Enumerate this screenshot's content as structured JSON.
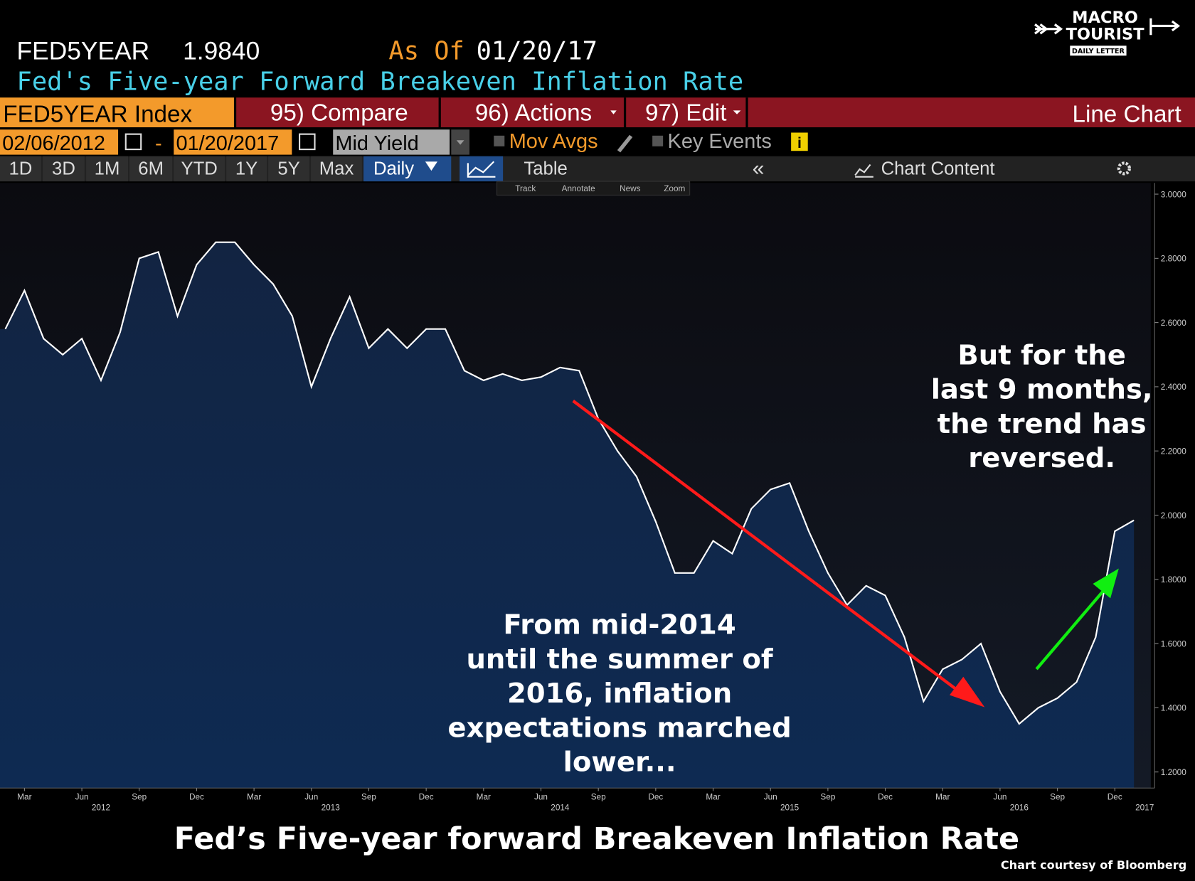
{
  "header": {
    "ticker": "FED5YEAR",
    "last": "1.9840",
    "as_of_label": "As Of",
    "as_of": "01/20/17",
    "name": "Fed's Five-year Forward Breakeven Inflation Rate"
  },
  "toolbar": {
    "security": "FED5YEAR Index",
    "compare": "95) Compare",
    "actions": "96) Actions",
    "edit": "97) Edit",
    "chart_kind": "Line Chart",
    "start_date": "02/06/2012",
    "date_sep": "-",
    "end_date": "01/20/2017",
    "field": "Mid Yield",
    "mov_avgs": "Mov Avgs",
    "key_events": "Key Events",
    "ranges": [
      "1D",
      "3D",
      "1M",
      "6M",
      "YTD",
      "1Y",
      "5Y",
      "Max"
    ],
    "period": "Daily",
    "table": "Table",
    "chart_content": "Chart Content",
    "tools": [
      "Track",
      "Annotate",
      "News",
      "Zoom"
    ]
  },
  "logo": {
    "line1": "MACRO",
    "line2": "TOURIST",
    "line3": "DAILY LETTER"
  },
  "chart_data": {
    "type": "line",
    "title": "Fed’s Five-year forward Breakeven Inflation Rate",
    "source": "Chart courtesy of Bloomberg",
    "x": [
      "2012-02",
      "2012-03",
      "2012-04",
      "2012-05",
      "2012-06",
      "2012-07",
      "2012-08",
      "2012-09",
      "2012-10",
      "2012-11",
      "2012-12",
      "2013-01",
      "2013-02",
      "2013-03",
      "2013-04",
      "2013-05",
      "2013-06",
      "2013-07",
      "2013-08",
      "2013-09",
      "2013-10",
      "2013-11",
      "2013-12",
      "2014-01",
      "2014-02",
      "2014-03",
      "2014-04",
      "2014-05",
      "2014-06",
      "2014-07",
      "2014-08",
      "2014-09",
      "2014-10",
      "2014-11",
      "2014-12",
      "2015-01",
      "2015-02",
      "2015-03",
      "2015-04",
      "2015-05",
      "2015-06",
      "2015-07",
      "2015-08",
      "2015-09",
      "2015-10",
      "2015-11",
      "2015-12",
      "2016-01",
      "2016-02",
      "2016-03",
      "2016-04",
      "2016-05",
      "2016-06",
      "2016-07",
      "2016-08",
      "2016-09",
      "2016-10",
      "2016-11",
      "2016-12",
      "2017-01"
    ],
    "series": [
      {
        "name": "FED5YEAR",
        "color": "#ffffff",
        "values": [
          2.58,
          2.7,
          2.55,
          2.5,
          2.55,
          2.42,
          2.57,
          2.8,
          2.82,
          2.62,
          2.78,
          2.85,
          2.85,
          2.78,
          2.72,
          2.62,
          2.4,
          2.55,
          2.68,
          2.52,
          2.58,
          2.52,
          2.58,
          2.58,
          2.45,
          2.42,
          2.44,
          2.42,
          2.43,
          2.46,
          2.45,
          2.3,
          2.2,
          2.12,
          1.98,
          1.82,
          1.82,
          1.92,
          1.88,
          2.02,
          2.08,
          2.1,
          1.95,
          1.82,
          1.72,
          1.78,
          1.75,
          1.62,
          1.42,
          1.52,
          1.55,
          1.6,
          1.45,
          1.35,
          1.4,
          1.43,
          1.48,
          1.62,
          1.95,
          1.984
        ]
      }
    ],
    "ylim": [
      1.15,
      3.035
    ],
    "yticks": [
      {
        "value": 1.2,
        "label": "1.2000"
      },
      {
        "value": 1.4,
        "label": "1.4000"
      },
      {
        "value": 1.6,
        "label": "1.6000"
      },
      {
        "value": 1.8,
        "label": "1.8000"
      },
      {
        "value": 2,
        "label": "2.0000"
      },
      {
        "value": 2.2,
        "label": "2.2000"
      },
      {
        "value": 2.4,
        "label": "2.4000"
      },
      {
        "value": 2.6,
        "label": "2.6000"
      },
      {
        "value": 2.8,
        "label": "2.8000"
      },
      {
        "value": 3,
        "label": "3.0000"
      }
    ],
    "xticks": [
      {
        "value": "2012-03",
        "label": "Mar"
      },
      {
        "value": "2012-06",
        "label": "Jun"
      },
      {
        "value": "2012-09",
        "label": "Sep"
      },
      {
        "value": "2012-12",
        "label": "Dec"
      },
      {
        "value": "2013-03",
        "label": "Mar"
      },
      {
        "value": "2013-06",
        "label": "Jun"
      },
      {
        "value": "2013-09",
        "label": "Sep"
      },
      {
        "value": "2013-12",
        "label": "Dec"
      },
      {
        "value": "2014-03",
        "label": "Mar"
      },
      {
        "value": "2014-06",
        "label": "Jun"
      },
      {
        "value": "2014-09",
        "label": "Sep"
      },
      {
        "value": "2014-12",
        "label": "Dec"
      },
      {
        "value": "2015-03",
        "label": "Mar"
      },
      {
        "value": "2015-06",
        "label": "Jun"
      },
      {
        "value": "2015-09",
        "label": "Sep"
      },
      {
        "value": "2015-12",
        "label": "Dec"
      },
      {
        "value": "2016-03",
        "label": "Mar"
      },
      {
        "value": "2016-06",
        "label": "Jun"
      },
      {
        "value": "2016-09",
        "label": "Sep"
      },
      {
        "value": "2016-12",
        "label": "Dec"
      }
    ],
    "year_labels": [
      {
        "value": "2012-07",
        "label": "2012"
      },
      {
        "value": "2013-07",
        "label": "2013"
      },
      {
        "value": "2014-07",
        "label": "2014"
      },
      {
        "value": "2015-07",
        "label": "2015"
      },
      {
        "value": "2016-07",
        "label": "2016"
      },
      {
        "value": "2017-01",
        "label": "2017"
      }
    ],
    "annotations": [
      {
        "lines": [
          "But for the",
          "last 9 months,",
          "the trend has",
          "reversed."
        ]
      },
      {
        "lines": [
          "From mid-2014",
          "until the summer of",
          "2016, inflation",
          "expectations marched",
          "lower..."
        ]
      }
    ]
  }
}
